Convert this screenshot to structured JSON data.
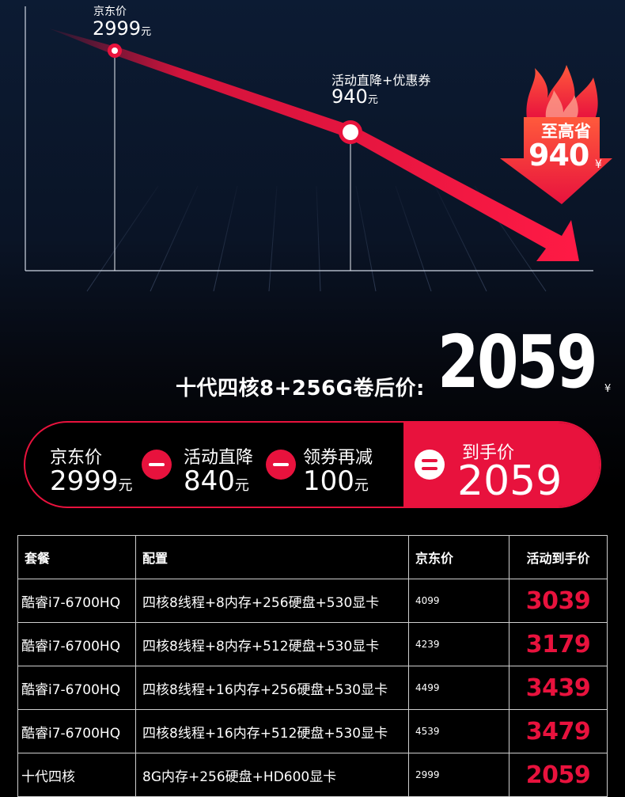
{
  "chart": {
    "jd_label": "京东价",
    "jd_value": "2999",
    "yuan": "元",
    "activity_label": "活动直降+优惠券",
    "activity_value": "940",
    "save_label": "至高省",
    "save_value": "940",
    "save_unit": "¥"
  },
  "promo": {
    "title": "十代四核8+256G卷后价:",
    "price": "2059",
    "unit": "¥"
  },
  "pill": {
    "items": [
      {
        "label": "京东价",
        "value": "2999",
        "unit": "元"
      },
      {
        "label": "活动直降",
        "value": "840",
        "unit": "元"
      },
      {
        "label": "领券再减",
        "value": "100",
        "unit": "元"
      }
    ],
    "final_label": "到手价",
    "final_value": "2059",
    "colors": {
      "accent": "#e8123d"
    }
  },
  "table": {
    "headers": [
      "套餐",
      "配置",
      "京东价",
      "活动到手价"
    ],
    "rows": [
      [
        "酷睿i7-6700HQ",
        "四核8线程+8内存+256硬盘+530显卡",
        "4099",
        "3039"
      ],
      [
        "酷睿i7-6700HQ",
        "四核8线程+8内存+512硬盘+530显卡",
        "4239",
        "3179"
      ],
      [
        "酷睿i7-6700HQ",
        "四核8线程+16内存+256硬盘+530显卡",
        "4499",
        "3439"
      ],
      [
        "酷睿i7-6700HQ",
        "四核8线程+16内存+512硬盘+530显卡",
        "4539",
        "3479"
      ],
      [
        "十代四核",
        "8G内存+256硬盘+HD600显卡",
        "2999",
        "2059"
      ]
    ]
  }
}
